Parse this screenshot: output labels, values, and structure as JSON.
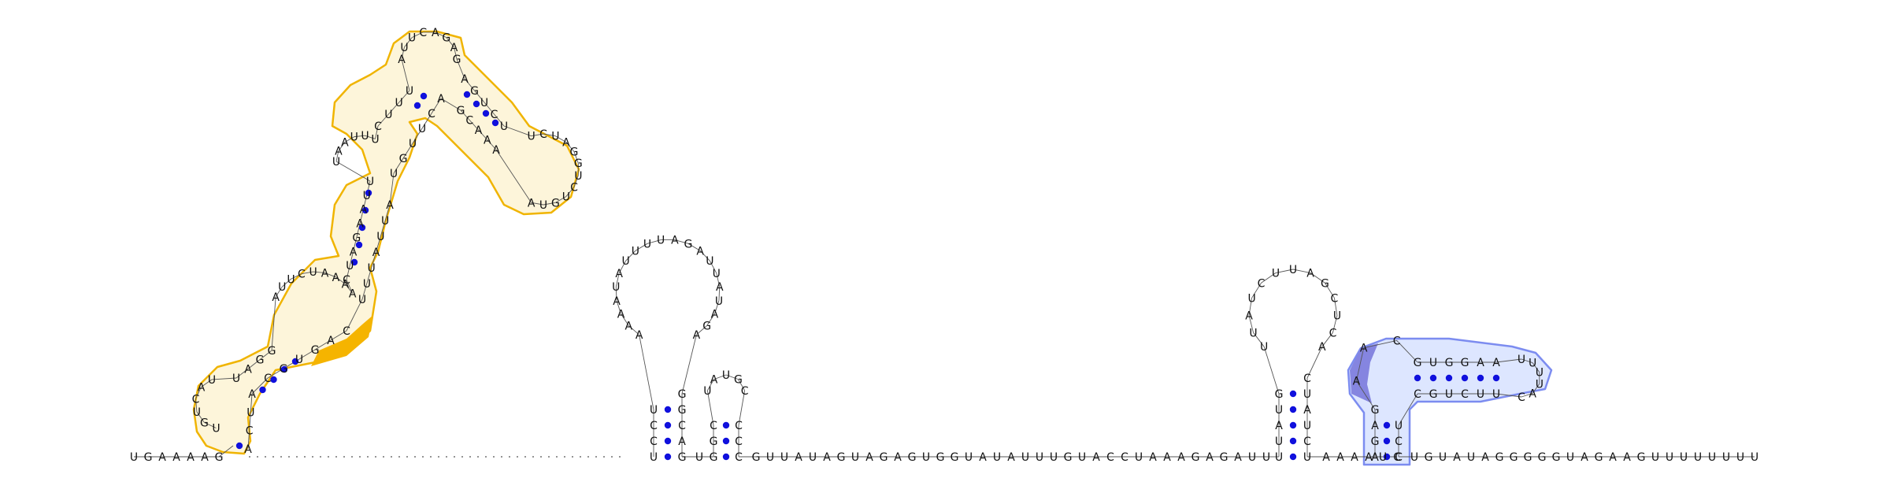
{
  "diagram": {
    "type": "rna-secondary-structure",
    "colors": {
      "background": "#ffffff",
      "nucleotide": "#111111",
      "backbone": "#555555",
      "base_pair": "#1010dd",
      "highlight_orange_fill": "#fdf5da",
      "highlight_orange_stroke": "#f0b400",
      "highlight_orange_strong": "#f5b400",
      "highlight_blue_fill": "#dde6ff",
      "highlight_blue_stroke": "#7c8cf0",
      "highlight_blue_strong": "#8585e0"
    },
    "sequences": {
      "prefix": "UGAAAAG",
      "hp1_stem5": "UCCU",
      "hp1_loop": "AAAAUAUUUUAGAUUAUAGA",
      "hp1_stem3": "GGCAG",
      "hp2_stem5": "GGC",
      "hp2_loop": "UAUGC",
      "hp2_stem3": "CCC",
      "middle": "GUUAUAGUAGAGUGGUAUAUUUGUACCUAAAGAGAUU",
      "hp3_stem5": "UUAUG",
      "hp3_loop": "UUAUCUUAGCUCA",
      "hp3_stem3": "CUAUCU",
      "tail": "AAAAUC",
      "junction5": "AGAG",
      "junction_loop": "AAC",
      "arm5": "GUGGAA",
      "arm_loop": "UUUUAC",
      "arm3": "UUCUGC",
      "junction3": "UCC",
      "suffix": "UGUAUAGGGGGUAGAAGUUUUUUUU"
    },
    "left_structure_labels": [
      "U",
      "G",
      "U",
      "C",
      "A",
      "U",
      "U",
      "A",
      "G",
      "G",
      "A",
      "U",
      "U",
      "C",
      "U",
      "A",
      "A",
      "A",
      "A",
      "C",
      "U",
      "A",
      "G",
      "A",
      "A",
      "U",
      "U",
      "U",
      "A",
      "A",
      "U",
      "U",
      "U",
      "C",
      "U",
      "U",
      "U",
      "A",
      "U",
      "U",
      "C",
      "A",
      "G",
      "A",
      "G",
      "A",
      "G",
      "U",
      "C",
      "U",
      "U",
      "C",
      "U",
      "A",
      "G",
      "G",
      "U",
      "C",
      "U",
      "G",
      "U",
      "A",
      "A",
      "A",
      "A",
      "C",
      "G",
      "A",
      "C",
      "U",
      "U",
      "G",
      "U",
      "A",
      "U",
      "U",
      "A",
      "U",
      "U",
      "U",
      "C",
      "A",
      "G",
      "U",
      "G",
      "C",
      "A",
      "U",
      "C",
      "A",
      "G",
      "U",
      "A",
      "A",
      "C",
      "U",
      "U"
    ],
    "dotted_gap": "........................"
  }
}
